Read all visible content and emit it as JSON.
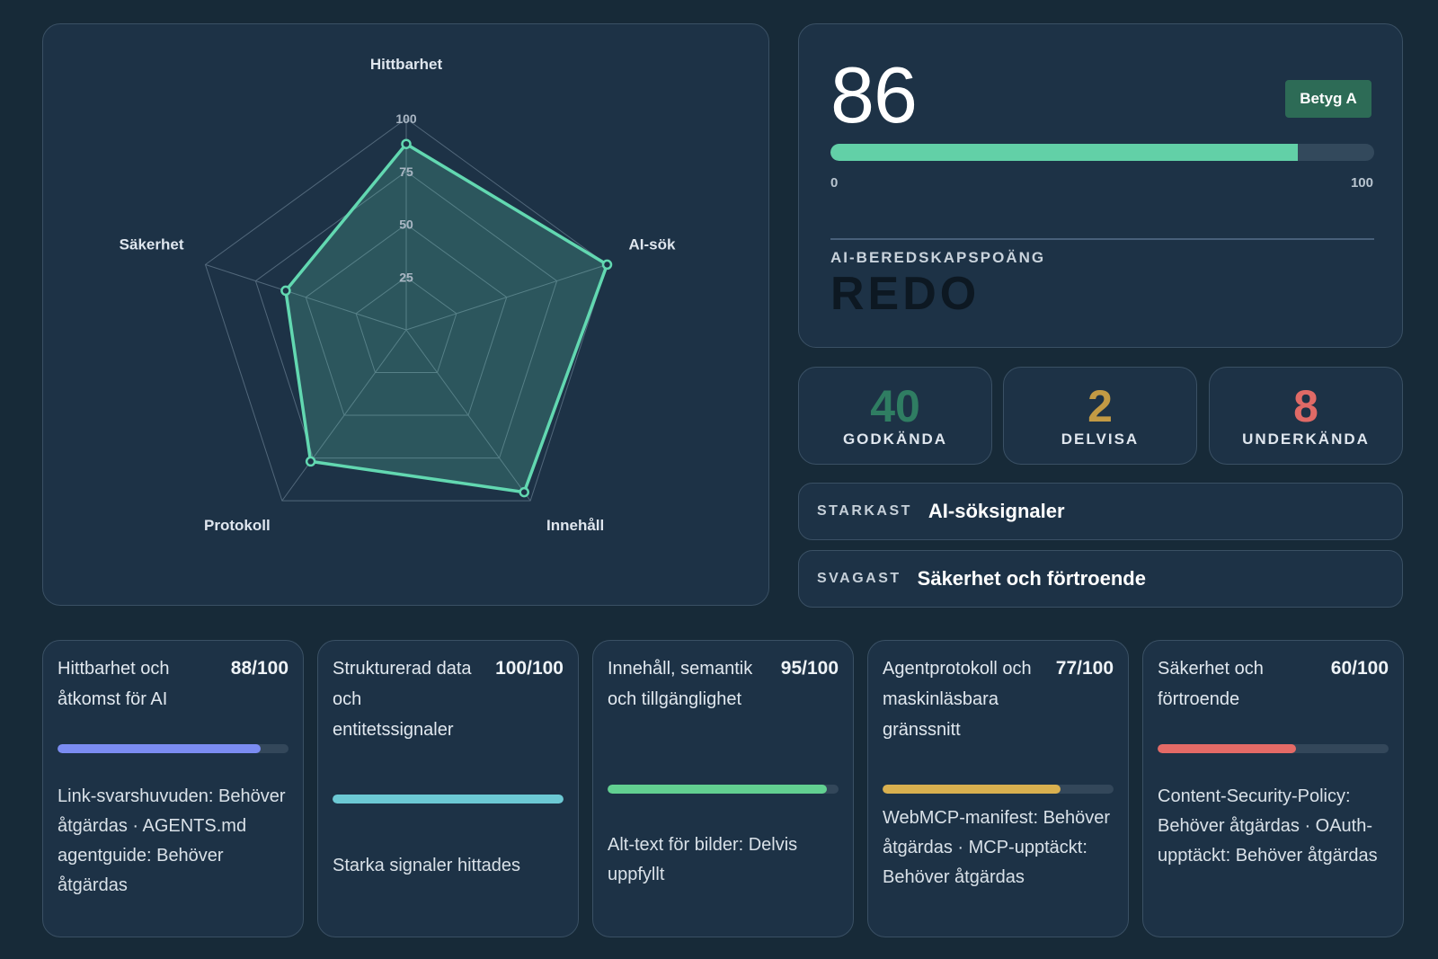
{
  "radar": {
    "axes": [
      {
        "label": "Hittbarhet",
        "value": 88
      },
      {
        "label": "AI-sök",
        "value": 100
      },
      {
        "label": "Innehåll",
        "value": 95
      },
      {
        "label": "Protokoll",
        "value": 77
      },
      {
        "label": "Säkerhet",
        "value": 60
      }
    ],
    "ticks": [
      "25",
      "50",
      "75",
      "100"
    ],
    "max": 100,
    "colors": {
      "line": "#62d8b1",
      "fill": "rgba(98,216,177,0.22)",
      "grid": "#52687b"
    }
  },
  "score": {
    "value": "86",
    "progress_percent": 86,
    "min_label": "0",
    "max_label": "100",
    "grade": "Betyg A",
    "caption": "AI-BEREDSKAPSPOÄNG",
    "status": "REDO",
    "colors": {
      "fill": "#62d0a7",
      "badge": "#2d6b56"
    }
  },
  "counts": [
    {
      "value": "40",
      "label": "GODKÄNDA",
      "color": "#2f7d62"
    },
    {
      "value": "2",
      "label": "DELVISA",
      "color": "#c29a44"
    },
    {
      "value": "8",
      "label": "UNDERKÄNDA",
      "color": "#e06a66"
    }
  ],
  "strongest": {
    "label": "STARKAST",
    "value": "AI-söksignaler"
  },
  "weakest": {
    "label": "SVAGAST",
    "value": "Säkerhet och förtroende"
  },
  "categories": [
    {
      "title": "Hittbarhet och åtkomst för AI",
      "score": "88/100",
      "percent": 88,
      "color": "#7b8cf2",
      "detail": "Link-svarshuvuden: Behöver åtgärdas · AGENTS.md agentguide: Behöver åtgärdas"
    },
    {
      "title": "Strukturerad data och entitetssignaler",
      "score": "100/100",
      "percent": 100,
      "color": "#6cc9d4",
      "detail": "Starka signaler hittades"
    },
    {
      "title": "Innehåll, semantik och tillgänglighet",
      "score": "95/100",
      "percent": 95,
      "color": "#62d091",
      "detail": "Alt-text för bilder: Delvis uppfyllt"
    },
    {
      "title": "Agentprotokoll och maskinläsbara gränssnitt",
      "score": "77/100",
      "percent": 77,
      "color": "#d9b04f",
      "detail": "WebMCP-manifest: Behöver åtgärdas · MCP-upptäckt: Behöver åtgärdas"
    },
    {
      "title": "Säkerhet och förtroende",
      "score": "60/100",
      "percent": 60,
      "color": "#e46a66",
      "detail": "Content-Security-Policy: Behöver åtgärdas · OAuth-upptäckt: Behöver åtgärdas"
    }
  ]
}
